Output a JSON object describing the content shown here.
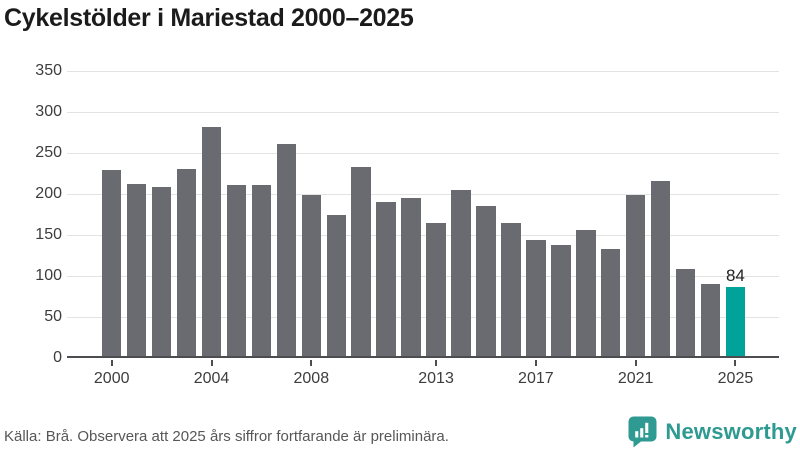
{
  "title": "Cykelstölder i Mariestad 2000–2025",
  "footer": {
    "source_note": "Källa: Brå. Observera att 2025 års siffror fortfarande är preliminära."
  },
  "branding": {
    "logo_text": "Newsworthy",
    "logo_icon": "speech-bubble-bar-chart-icon",
    "logo_color": "#2E9A91"
  },
  "colors": {
    "background": "#FFFFFF",
    "bar": "#6A6A71",
    "highlight": "#00A29A",
    "axis": "#4C4C51",
    "grid": "#E3E3E3",
    "title_text": "#1B1B1B",
    "tick_label": "#3D3D3D",
    "annotation_text": "#222222",
    "footer_text": "#575757"
  },
  "chart_data": {
    "type": "bar",
    "title": "Cykelstölder i Mariestad 2000–2025",
    "xlabel": "",
    "ylabel": "",
    "categories": [
      2000,
      2001,
      2002,
      2003,
      2004,
      2005,
      2006,
      2007,
      2008,
      2009,
      2010,
      2011,
      2012,
      2013,
      2014,
      2015,
      2016,
      2017,
      2018,
      2019,
      2020,
      2021,
      2022,
      2023,
      2024,
      2025
    ],
    "values": [
      227,
      210,
      206,
      228,
      279,
      209,
      209,
      258,
      196,
      172,
      230,
      188,
      193,
      162,
      202,
      183,
      162,
      142,
      135,
      154,
      130,
      196,
      214,
      106,
      88,
      84
    ],
    "highlight_index": 25,
    "annotation": {
      "index": 25,
      "text": "84"
    },
    "ylim": [
      0,
      350
    ],
    "yticks": [
      0,
      50,
      100,
      150,
      200,
      250,
      300,
      350
    ],
    "xticks": [
      2000,
      2004,
      2008,
      2013,
      2017,
      2021,
      2025
    ],
    "grid": true,
    "legend": "none"
  }
}
